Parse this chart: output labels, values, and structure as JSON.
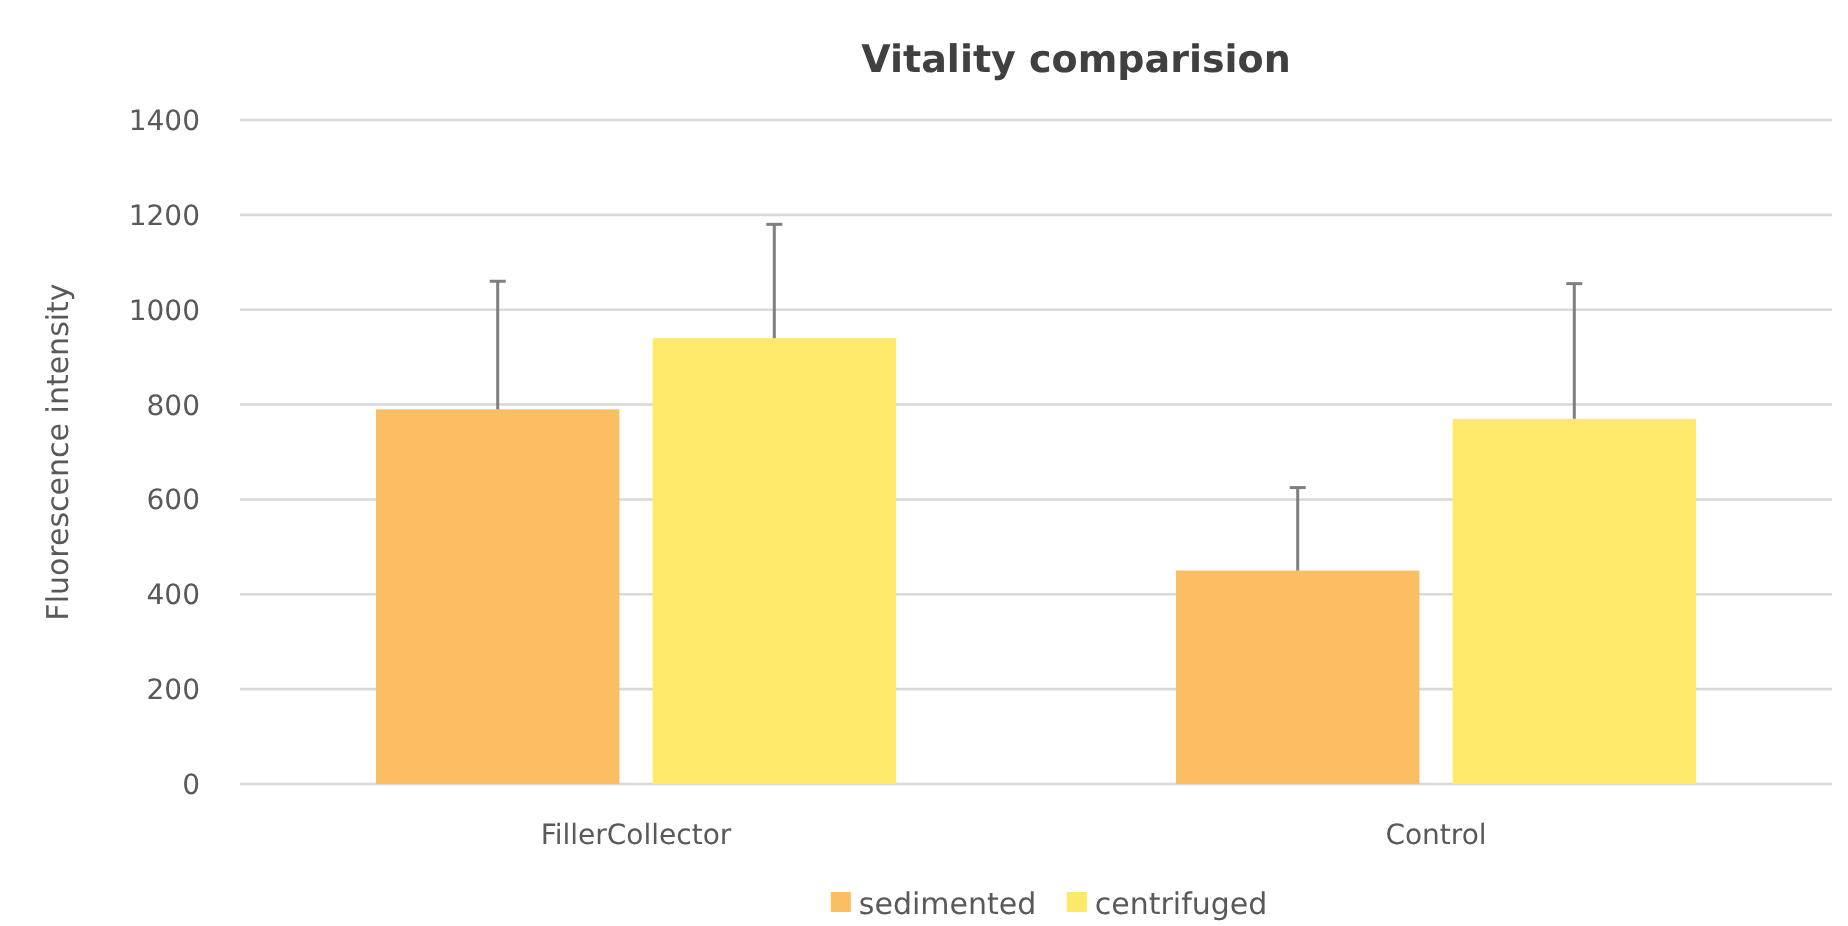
{
  "chart_data": {
    "type": "bar",
    "title": "Vitality comparision",
    "ylabel": "Fluorescence intensity",
    "categories": [
      "FillerCollector",
      "Control"
    ],
    "series": [
      {
        "name": "sedimented",
        "color": "#fbbe63",
        "values": [
          790,
          450
        ],
        "errors": [
          270,
          175
        ]
      },
      {
        "name": "centrifuged",
        "color": "#fee968",
        "values": [
          940,
          770
        ],
        "errors": [
          240,
          285
        ]
      }
    ],
    "ylim": [
      0,
      1400
    ],
    "yticks": [
      0,
      200,
      400,
      600,
      800,
      1000,
      1200,
      1400
    ],
    "grid": "y",
    "legend": "bottom"
  }
}
